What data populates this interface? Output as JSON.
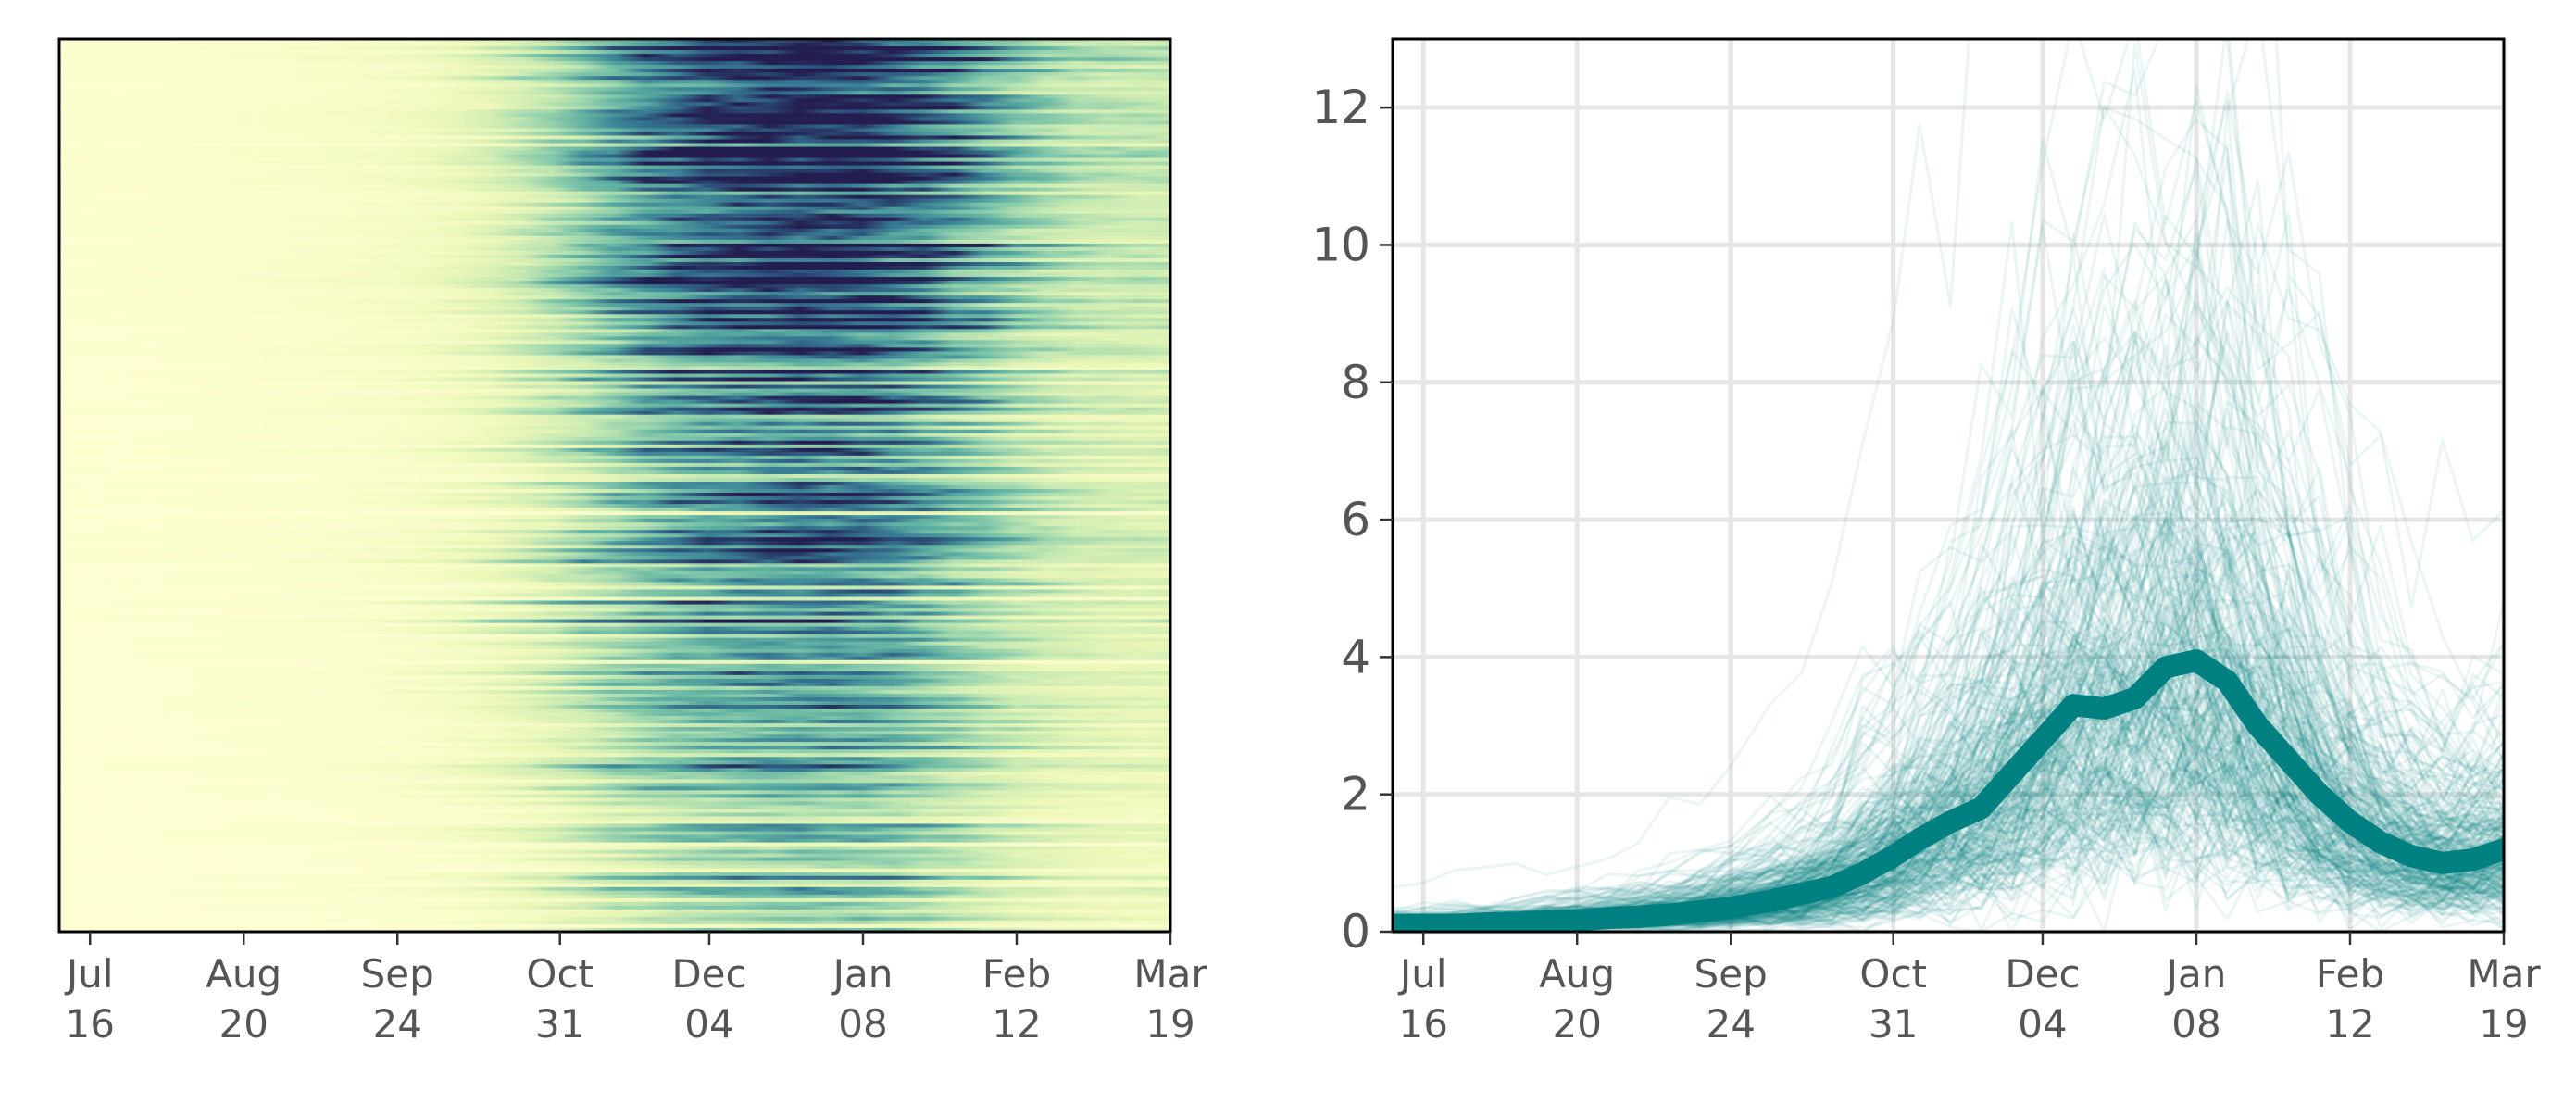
{
  "chart_data": [
    {
      "type": "heatmap",
      "title": "",
      "xlabel": "",
      "ylabel": "",
      "y_ticks": false,
      "colormap": "YlGnBu-like (pale yellow = low, teal = mid, dark navy = high)",
      "colors": {
        "low": "#ffffd0",
        "mid": "#5aa9a0",
        "high": "#24285c"
      },
      "xlim": [
        "Jul 09",
        "Mar 19"
      ],
      "x_ticks": [
        {
          "date": "Jul 16",
          "line1": "Jul",
          "line2": "16"
        },
        {
          "date": "Aug 20",
          "line1": "Aug",
          "line2": "20"
        },
        {
          "date": "Sep 24",
          "line1": "Sep",
          "line2": "24"
        },
        {
          "date": "Oct 31",
          "line1": "Oct",
          "line2": "31"
        },
        {
          "date": "Dec 04",
          "line1": "Dec",
          "line2": "04"
        },
        {
          "date": "Jan 08",
          "line1": "Jan",
          "line2": "08"
        },
        {
          "date": "Feb 12",
          "line1": "Feb",
          "line2": "12"
        },
        {
          "date": "Mar 19",
          "line1": "Mar",
          "line2": "19"
        }
      ],
      "dates": [
        "Jul 09",
        "Jul 16",
        "Jul 23",
        "Jul 30",
        "Aug 06",
        "Aug 13",
        "Aug 20",
        "Aug 27",
        "Sep 03",
        "Sep 10",
        "Sep 17",
        "Sep 24",
        "Oct 03",
        "Oct 10",
        "Oct 17",
        "Oct 24",
        "Oct 31",
        "Nov 06",
        "Nov 13",
        "Nov 20",
        "Nov 27",
        "Dec 04",
        "Dec 11",
        "Dec 18",
        "Dec 25",
        "Jan 01",
        "Jan 08",
        "Jan 15",
        "Jan 22",
        "Jan 29",
        "Feb 05",
        "Feb 12",
        "Feb 19",
        "Feb 26",
        "Mar 05",
        "Mar 12",
        "Mar 19"
      ],
      "mean_profile": [
        0.1,
        0.1,
        0.1,
        0.12,
        0.13,
        0.15,
        0.17,
        0.2,
        0.22,
        0.25,
        0.3,
        0.35,
        0.45,
        0.6,
        0.8,
        1.1,
        1.5,
        1.9,
        2.4,
        2.9,
        3.3,
        3.5,
        3.7,
        3.9,
        4.0,
        4.0,
        3.9,
        3.6,
        3.2,
        2.7,
        2.2,
        1.8,
        1.5,
        1.3,
        1.2,
        1.2,
        1.2
      ],
      "legend": "none",
      "grid": false
    },
    {
      "type": "line",
      "title": "",
      "xlabel": "",
      "ylabel": "",
      "ylim": [
        0,
        13
      ],
      "y_ticks": [
        0,
        2,
        4,
        6,
        8,
        10,
        12
      ],
      "xlim": [
        "Jul 09",
        "Mar 19"
      ],
      "x_ticks": [
        {
          "date": "Jul 16",
          "line1": "Jul",
          "line2": "16"
        },
        {
          "date": "Aug 20",
          "line1": "Aug",
          "line2": "20"
        },
        {
          "date": "Sep 24",
          "line1": "Sep",
          "line2": "24"
        },
        {
          "date": "Oct 31",
          "line1": "Oct",
          "line2": "31"
        },
        {
          "date": "Dec 04",
          "line1": "Dec",
          "line2": "04"
        },
        {
          "date": "Jan 08",
          "line1": "Jan",
          "line2": "08"
        },
        {
          "date": "Feb 12",
          "line1": "Feb",
          "line2": "12"
        },
        {
          "date": "Mar 19",
          "line1": "Mar",
          "line2": "19"
        }
      ],
      "grid": true,
      "legend": "none",
      "colors": {
        "series": "#008080",
        "grid": "#e6e6e6"
      },
      "series": [
        {
          "role": "mean",
          "x": [
            "Jul 09",
            "Jul 16",
            "Jul 23",
            "Jul 30",
            "Aug 06",
            "Aug 13",
            "Aug 20",
            "Aug 27",
            "Sep 03",
            "Sep 10",
            "Sep 17",
            "Sep 24",
            "Oct 03",
            "Oct 10",
            "Oct 17",
            "Oct 24",
            "Oct 31",
            "Nov 06",
            "Nov 13",
            "Nov 20",
            "Nov 27",
            "Dec 04",
            "Dec 11",
            "Dec 18",
            "Dec 25",
            "Jan 01",
            "Jan 08",
            "Jan 15",
            "Jan 22",
            "Jan 29",
            "Feb 05",
            "Feb 12",
            "Feb 19",
            "Feb 26",
            "Mar 05",
            "Mar 12",
            "Mar 19"
          ],
          "values": [
            0.1,
            0.1,
            0.1,
            0.12,
            0.13,
            0.15,
            0.17,
            0.2,
            0.22,
            0.25,
            0.3,
            0.35,
            0.45,
            0.55,
            0.65,
            0.85,
            1.1,
            1.35,
            1.6,
            1.8,
            2.3,
            2.8,
            3.3,
            3.25,
            3.4,
            3.85,
            3.95,
            3.65,
            3.0,
            2.5,
            2.0,
            1.6,
            1.3,
            1.1,
            1.0,
            1.05,
            1.2
          ]
        }
      ],
      "individual_series_count": 300,
      "individual_series_alpha": 0.08
    }
  ]
}
